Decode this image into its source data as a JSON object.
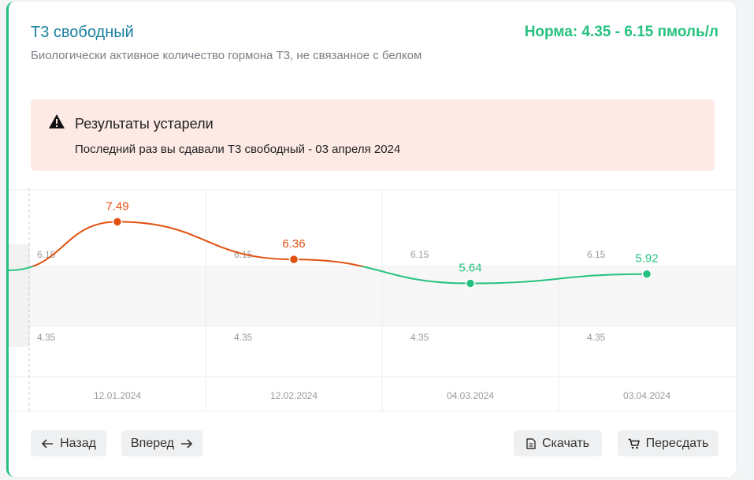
{
  "header": {
    "title": "Т3 свободный",
    "norm": "Норма: 4.35 - 6.15 пмоль/л",
    "description": "Биологически активное количество гормона Т3, не связанное с белком"
  },
  "alert": {
    "title": "Результаты устарели",
    "text": "Последний раз вы сдавали Т3 свободный - 03 апреля 2024"
  },
  "chart_data": {
    "type": "line",
    "x": [
      "12.01.2024",
      "12.02.2024",
      "04.03.2024",
      "03.04.2024"
    ],
    "series": [
      {
        "values": [
          7.49,
          6.36,
          5.64,
          5.92
        ]
      }
    ],
    "reference_range": [
      4.35,
      6.15
    ],
    "reference_labels": {
      "upper": "6.15",
      "lower": "4.35"
    },
    "colors": {
      "out_of_range": "#e2500f",
      "in_range": "#25c17f"
    }
  },
  "buttons": {
    "back": "Назад",
    "forward": "Вперед",
    "download": "Скачать",
    "retake": "Пересдать"
  },
  "icons": {
    "alert": "warning-triangle-icon",
    "back": "arrow-left-icon",
    "forward": "arrow-right-icon",
    "download": "document-icon",
    "retake": "cart-icon"
  }
}
